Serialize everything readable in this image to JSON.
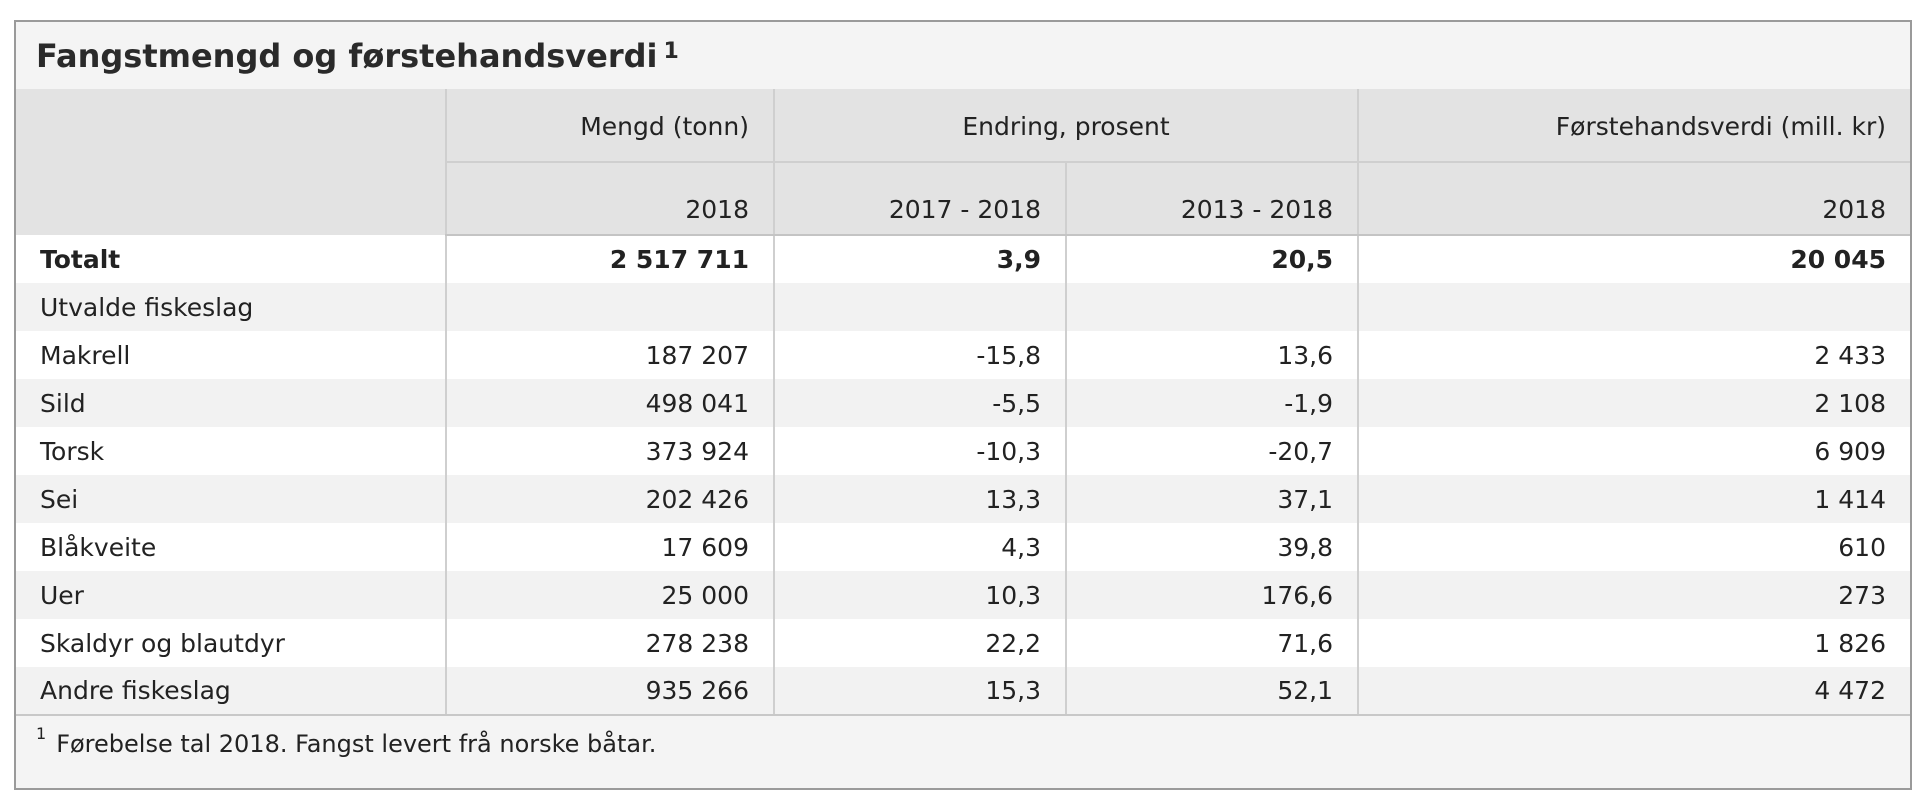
{
  "title": "Fangstmengd og førstehandsverdi",
  "title_note": "1",
  "header": {
    "group_cols": [
      "Mengd (tonn)",
      "Endring, prosent",
      "Førstehandsverdi (mill. kr)"
    ],
    "sub_cols": [
      "2018",
      "2017 - 2018",
      "2013 - 2018",
      "2018"
    ]
  },
  "rows": [
    {
      "label": "Totalt",
      "values": [
        "2 517 711",
        "3,9",
        "20,5",
        "20 045"
      ],
      "bold": true
    },
    {
      "label": "Utvalde fiskeslag",
      "values": [
        "",
        "",
        "",
        ""
      ]
    },
    {
      "label": "Makrell",
      "values": [
        "187 207",
        "-15,8",
        "13,6",
        "2 433"
      ]
    },
    {
      "label": "Sild",
      "values": [
        "498 041",
        "-5,5",
        "-1,9",
        "2 108"
      ]
    },
    {
      "label": "Torsk",
      "values": [
        "373 924",
        "-10,3",
        "-20,7",
        "6 909"
      ]
    },
    {
      "label": "Sei",
      "values": [
        "202 426",
        "13,3",
        "37,1",
        "1 414"
      ]
    },
    {
      "label": "Blåkveite",
      "values": [
        "17 609",
        "4,3",
        "39,8",
        "610"
      ]
    },
    {
      "label": "Uer",
      "values": [
        "25 000",
        "10,3",
        "176,6",
        "273"
      ]
    },
    {
      "label": "Skaldyr og blautdyr",
      "values": [
        "278 238",
        "22,2",
        "71,6",
        "1 826"
      ]
    },
    {
      "label": "Andre fiskeslag",
      "values": [
        "935 266",
        "15,3",
        "52,1",
        "4 472"
      ]
    }
  ],
  "footnote": {
    "mark": "1",
    "text": "Førebelse tal 2018. Fangst levert frå norske båtar."
  }
}
